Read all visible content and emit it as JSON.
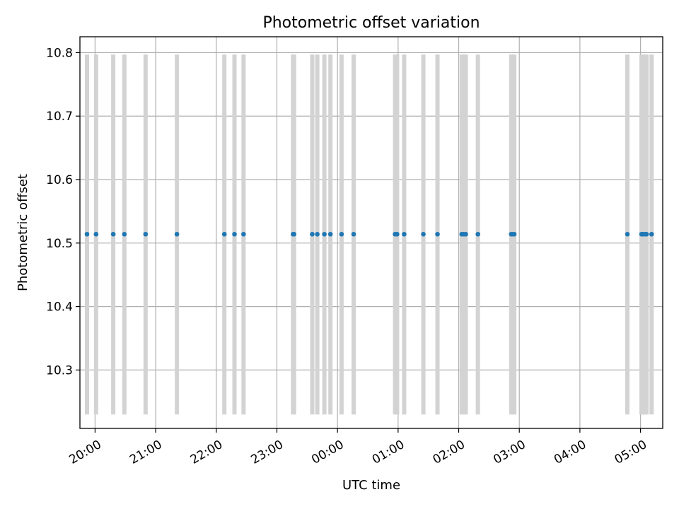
{
  "chart_data": {
    "type": "scatter",
    "title": "Photometric offset variation",
    "xlabel": "UTC time",
    "ylabel": "Photometric offset",
    "x_axis_type": "time",
    "xlim": [
      "19:45",
      "05:22"
    ],
    "ylim": [
      10.208,
      10.825
    ],
    "xticks": [
      "20:00",
      "21:00",
      "22:00",
      "23:00",
      "00:00",
      "01:00",
      "02:00",
      "03:00",
      "04:00",
      "05:00"
    ],
    "yticks": [
      "10.3",
      "10.4",
      "10.5",
      "10.6",
      "10.7",
      "10.8"
    ],
    "grid": true,
    "point_color": "#1f77b4",
    "band_color": "#d3d3d3",
    "band_range": [
      10.23,
      10.797
    ],
    "series": [
      {
        "x": [
          "19:52",
          "20:01",
          "20:18",
          "20:29",
          "20:50",
          "21:21",
          "22:08",
          "22:18",
          "22:27",
          "23:16",
          "23:17",
          "23:35",
          "23:40",
          "23:47",
          "23:53",
          "00:04",
          "00:16",
          "00:57",
          "00:59",
          "01:06",
          "01:25",
          "01:39",
          "02:03",
          "02:05",
          "02:07",
          "02:19",
          "02:52",
          "02:53",
          "02:55",
          "04:47",
          "05:01",
          "05:02",
          "05:03",
          "05:05",
          "05:06",
          "05:11"
        ],
        "y": [
          10.514,
          10.514,
          10.514,
          10.514,
          10.514,
          10.514,
          10.514,
          10.514,
          10.514,
          10.514,
          10.514,
          10.514,
          10.514,
          10.514,
          10.514,
          10.514,
          10.514,
          10.514,
          10.514,
          10.514,
          10.514,
          10.514,
          10.514,
          10.514,
          10.514,
          10.514,
          10.514,
          10.514,
          10.514,
          10.514,
          10.514,
          10.514,
          10.514,
          10.514,
          10.514,
          10.514
        ]
      }
    ]
  }
}
